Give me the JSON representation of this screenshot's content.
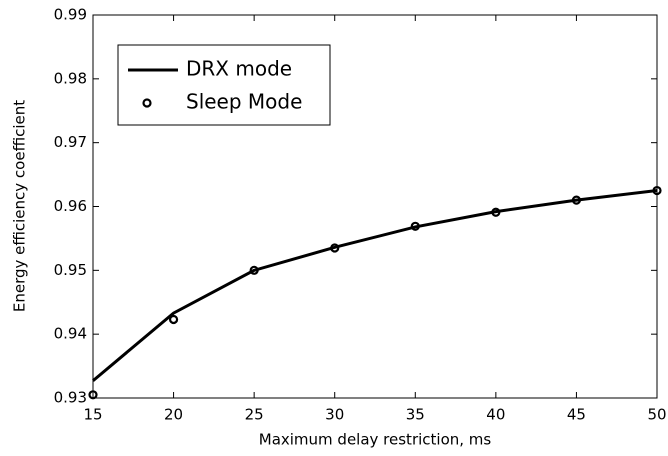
{
  "chart_data": {
    "type": "line",
    "x_label": "Maximum delay restriction, ms",
    "y_label": "Energy efficiency coefficient",
    "x": [
      15,
      20,
      25,
      30,
      35,
      40,
      45,
      50
    ],
    "series": [
      {
        "name": "DRX mode",
        "color": "#000000",
        "style": "line",
        "values": [
          0.9327,
          0.9433,
          0.95,
          0.9536,
          0.9568,
          0.9592,
          0.961,
          0.9625
        ]
      },
      {
        "name": "Sleep Mode",
        "color": "#000000",
        "style": "marker",
        "values": [
          0.9305,
          0.9423,
          0.95,
          0.9535,
          0.9569,
          0.9591,
          0.961,
          0.9625
        ]
      }
    ],
    "xlim": [
      15,
      50
    ],
    "xticks": [
      15,
      20,
      25,
      30,
      35,
      40,
      45,
      50
    ],
    "ylim": [
      0.93,
      0.99
    ],
    "yticks": [
      0.93,
      0.94,
      0.95,
      0.96,
      0.97,
      0.98,
      0.99
    ],
    "legend": "upper left"
  }
}
